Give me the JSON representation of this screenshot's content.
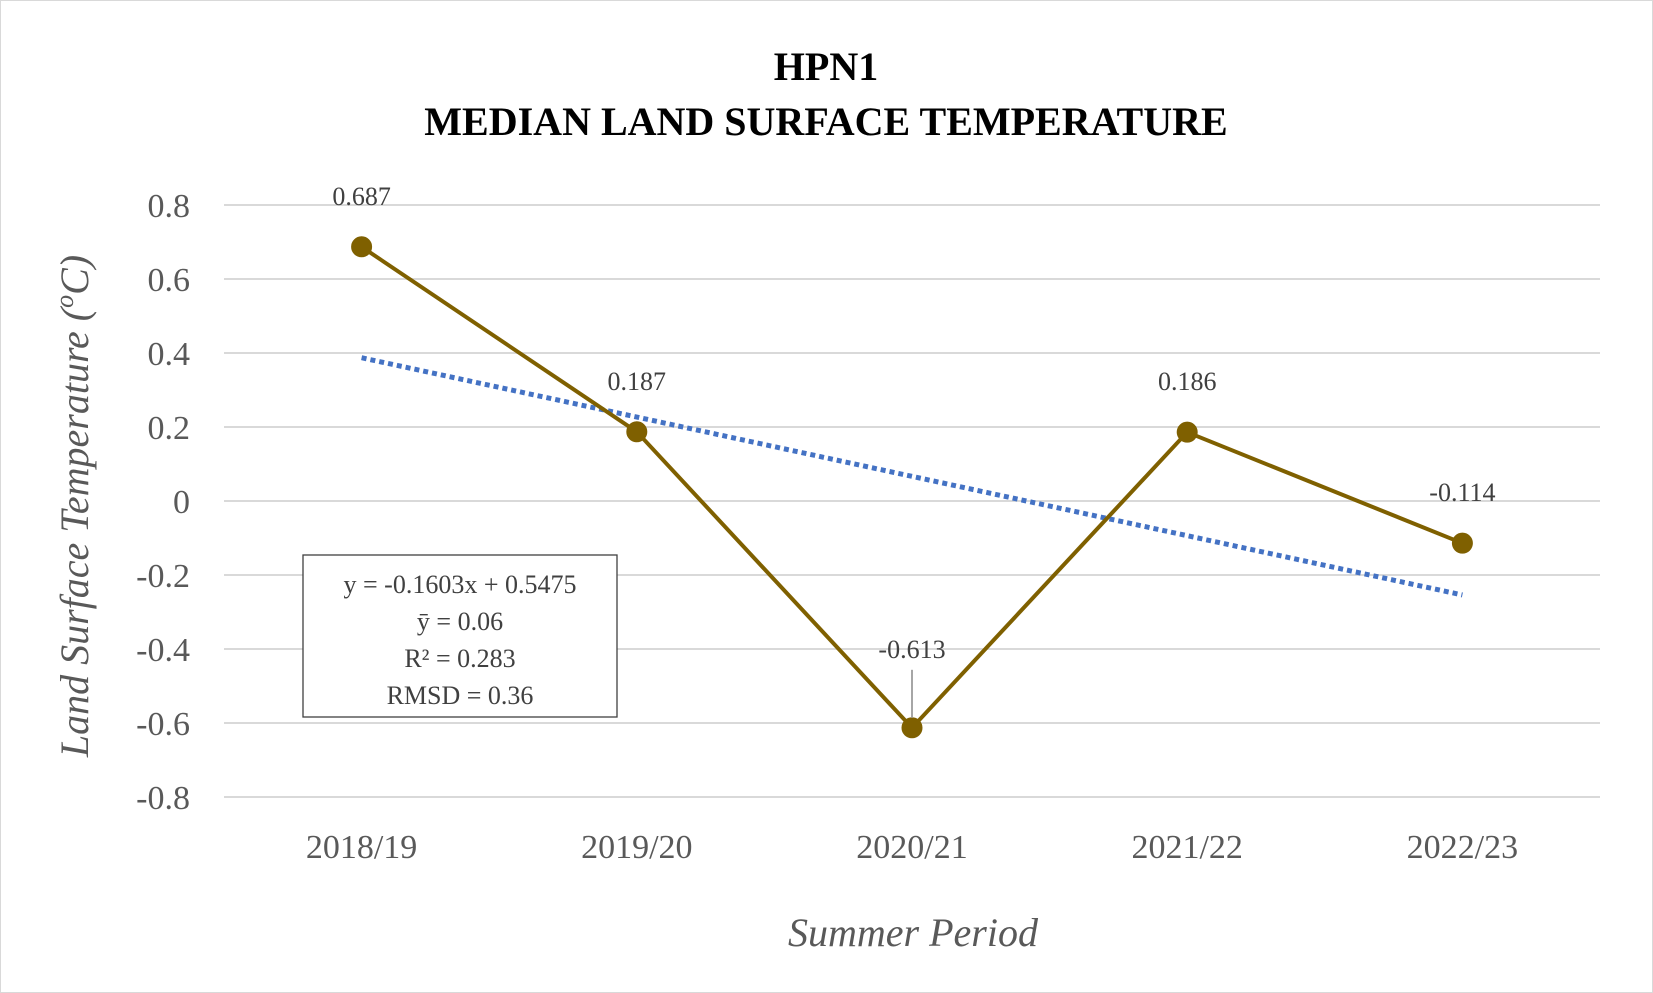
{
  "chart_data": {
    "type": "line",
    "title_lines": [
      "HPN1",
      "MEDIAN LAND SURFACE TEMPERATURE"
    ],
    "xlabel": "Summer Period",
    "ylabel_main": "Land Surface Temperature (",
    "ylabel_sup": "o",
    "ylabel_unit": "C)",
    "categories": [
      "2018/19",
      "2019/20",
      "2020/21",
      "2021/22",
      "2022/23"
    ],
    "series": [
      {
        "values": [
          0.687,
          0.187,
          -0.613,
          0.186,
          -0.114
        ],
        "data_labels": [
          "0.687",
          "0.187",
          "-0.613",
          "0.186",
          "-0.114"
        ],
        "color": "#7f6000"
      }
    ],
    "trendline": {
      "type": "linear",
      "slope": -0.1603,
      "intercept": 0.5475,
      "color": "#4472c4",
      "style": "dotted"
    },
    "equation_box": [
      "y = -0.1603x + 0.5475",
      "ȳ = 0.06",
      "R² = 0.283",
      "RMSD = 0.36"
    ],
    "ylim": [
      -0.8,
      0.8
    ],
    "yticks": [
      0.8,
      0.6,
      0.4,
      0.2,
      0,
      -0.2,
      -0.4,
      -0.6,
      -0.8
    ],
    "ytick_labels": [
      "0.8",
      "0.6",
      "0.4",
      "0.2",
      "0",
      "-0.2",
      "-0.4",
      "-0.6",
      "-0.8"
    ],
    "grid": true,
    "legend": "none",
    "gridline_color": "#d9d9d9"
  }
}
